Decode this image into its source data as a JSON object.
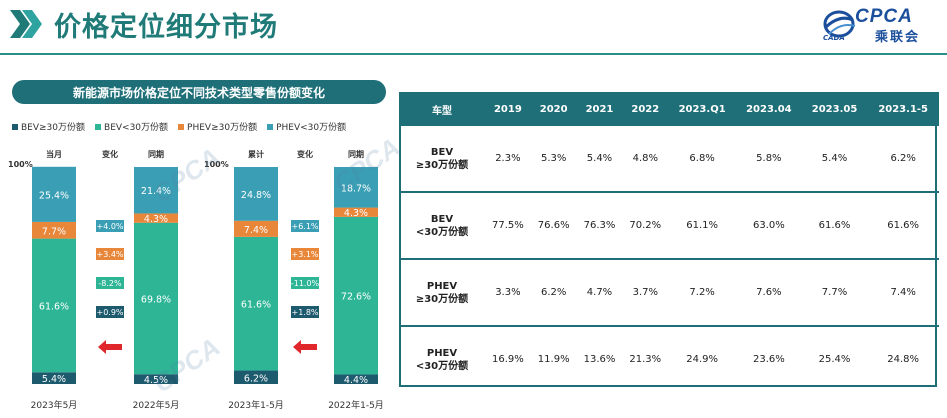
{
  "header": {
    "title": "价格定位细分市场",
    "logo_text": "CPCA",
    "logo_cn": "乘联会",
    "logo_sub": "CADA"
  },
  "colors": {
    "teal_dark": "#1f6f78",
    "bev_high": "#1e5a6e",
    "bev_low": "#3a9fb4",
    "phev_high": "#e8873a",
    "phev_low": "#2db596",
    "arrow_red": "#e0282c"
  },
  "left": {
    "subtitle": "新能源市场价格定位不同技术类型零售份额变化",
    "legend": [
      {
        "label": "BEV≥30万份额",
        "color": "#1e5a6e"
      },
      {
        "label": "BEV<30万份额",
        "color": "#2db596"
      },
      {
        "label": "PHEV≥30万份额",
        "color": "#e8873a"
      },
      {
        "label": "PHEV<30万份额",
        "color": "#3a9fb4"
      }
    ]
  },
  "chart_data": {
    "type": "bar",
    "stacked": true,
    "percent": true,
    "y_top_label": "100%",
    "groups": [
      {
        "columns": [
          {
            "header": "当月",
            "category": "2023年5月",
            "segments": {
              "BEV≥30万": 5.4,
              "BEV<30万": 61.6,
              "PHEV≥30万": 7.7,
              "PHEV<30万": 25.4
            }
          },
          {
            "header": "同期",
            "category": "2022年5月",
            "segments": {
              "BEV≥30万": 4.5,
              "BEV<30万": 69.8,
              "PHEV≥30万": 4.3,
              "PHEV<30万": 21.4
            }
          }
        ],
        "change_header": "变化",
        "changes": [
          "+4.0%",
          "+3.4%",
          "-8.2%",
          "+0.9%"
        ]
      },
      {
        "columns": [
          {
            "header": "累计",
            "category": "2023年1-5月",
            "segments": {
              "BEV≥30万": 6.2,
              "BEV<30万": 61.6,
              "PHEV≥30万": 7.4,
              "PHEV<30万": 24.8
            }
          },
          {
            "header": "同期",
            "category": "2022年1-5月",
            "segments": {
              "BEV≥30万": 4.4,
              "BEV<30万": 72.6,
              "PHEV≥30万": 4.3,
              "PHEV<30万": 18.7
            }
          }
        ],
        "change_header": "变化",
        "changes": [
          "+6.1%",
          "+3.1%",
          "-11.0%",
          "+1.8%"
        ]
      }
    ]
  },
  "table": {
    "headers": [
      "车型",
      "2019",
      "2020",
      "2021",
      "2022",
      "2023.Q1",
      "2023.04",
      "2023.05",
      "2023.1-5"
    ],
    "rows": [
      {
        "cat1": "BEV",
        "cat2": "≥30万份额",
        "values": [
          "2.3%",
          "5.3%",
          "5.4%",
          "4.8%",
          "6.8%",
          "5.8%",
          "5.4%",
          "6.2%"
        ]
      },
      {
        "cat1": "BEV",
        "cat2": "<30万份额",
        "values": [
          "77.5%",
          "76.6%",
          "76.3%",
          "70.2%",
          "61.1%",
          "63.0%",
          "61.6%",
          "61.6%"
        ]
      },
      {
        "cat1": "PHEV",
        "cat2": "≥30万份额",
        "values": [
          "3.3%",
          "6.2%",
          "4.7%",
          "3.7%",
          "7.2%",
          "7.6%",
          "7.7%",
          "7.4%"
        ]
      },
      {
        "cat1": "PHEV",
        "cat2": "<30万份额",
        "values": [
          "16.9%",
          "11.9%",
          "13.6%",
          "21.3%",
          "24.9%",
          "23.6%",
          "25.4%",
          "24.8%"
        ]
      }
    ]
  },
  "watermark_text": "CPCA"
}
